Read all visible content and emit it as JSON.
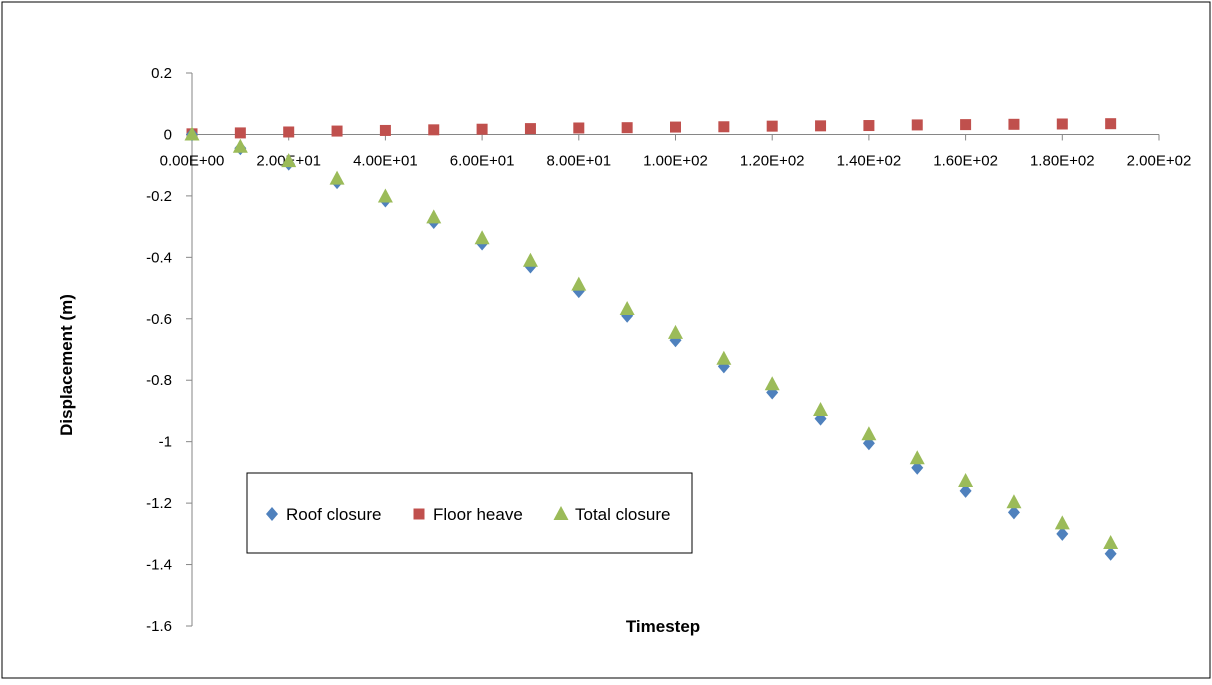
{
  "chart_data": {
    "type": "scatter",
    "title": "",
    "xlabel": "Timestep",
    "ylabel": "Displacement (m)",
    "xlim": [
      0,
      200
    ],
    "ylim": [
      -1.6,
      0.2
    ],
    "x_ticks": [
      0,
      20,
      40,
      60,
      80,
      100,
      120,
      140,
      160,
      180,
      200
    ],
    "x_tick_labels": [
      "0.00E+00",
      "2.00E+01",
      "4.00E+01",
      "6.00E+01",
      "8.00E+01",
      "1.00E+02",
      "1.20E+02",
      "1.40E+02",
      "1.60E+02",
      "1.80E+02",
      "2.00E+02"
    ],
    "y_ticks": [
      0.2,
      0,
      -0.2,
      -0.4,
      -0.6,
      -0.8,
      -1,
      -1.2,
      -1.4,
      -1.6
    ],
    "y_tick_labels": [
      "0.2",
      "0",
      "-0.2",
      "-0.4",
      "-0.6",
      "-0.8",
      "-1",
      "-1.2",
      "-1.4",
      "-1.6"
    ],
    "grid": false,
    "legend_position": "bottom-left",
    "x": [
      0,
      10,
      20,
      30,
      40,
      50,
      60,
      70,
      80,
      90,
      100,
      110,
      120,
      130,
      140,
      150,
      160,
      170,
      180,
      190
    ],
    "series": [
      {
        "name": "Roof closure",
        "marker": "diamond",
        "color": "#4F81BD",
        "values": [
          0,
          -0.045,
          -0.095,
          -0.155,
          -0.215,
          -0.285,
          -0.355,
          -0.43,
          -0.51,
          -0.59,
          -0.67,
          -0.755,
          -0.84,
          -0.925,
          -1.005,
          -1.085,
          -1.16,
          -1.23,
          -1.3,
          -1.365
        ]
      },
      {
        "name": "Floor heave",
        "marker": "square",
        "color": "#C0504D",
        "values": [
          0.002,
          0.005,
          0.008,
          0.011,
          0.013,
          0.015,
          0.017,
          0.019,
          0.021,
          0.022,
          0.024,
          0.025,
          0.027,
          0.028,
          0.029,
          0.031,
          0.032,
          0.033,
          0.034,
          0.035
        ]
      },
      {
        "name": "Total closure",
        "marker": "triangle",
        "color": "#9BBB59",
        "values": [
          0,
          -0.04,
          -0.087,
          -0.144,
          -0.202,
          -0.27,
          -0.338,
          -0.411,
          -0.489,
          -0.568,
          -0.646,
          -0.73,
          -0.813,
          -0.897,
          -0.976,
          -1.054,
          -1.128,
          -1.197,
          -1.266,
          -1.33
        ]
      }
    ]
  }
}
